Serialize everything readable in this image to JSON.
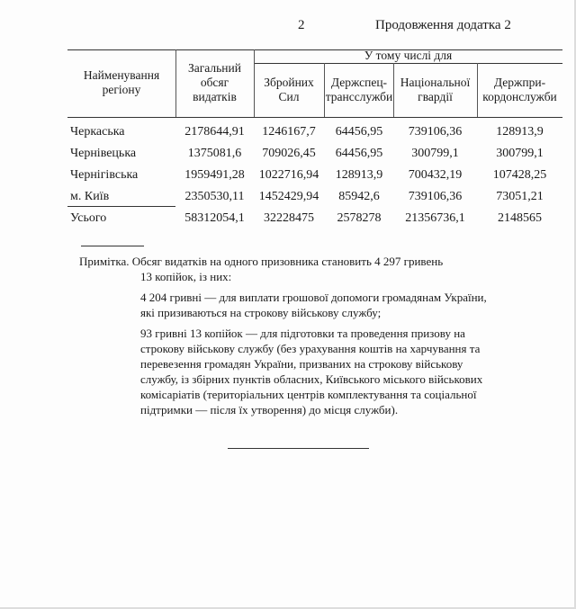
{
  "page_number": "2",
  "continuation_label": "Продовження додатка 2",
  "table": {
    "headers": {
      "region": "Найменування регіону",
      "total": "Загальний обсяг видатків",
      "group": "У тому числі для",
      "sub": [
        "Збройних Сил",
        "Держспец-трансслужби",
        "Національної гвардії",
        "Держпри-кордонслужби"
      ]
    },
    "header_lines": {
      "region": [
        "Найменування",
        "регіону"
      ],
      "total": [
        "Загальний",
        "обсяг",
        "видатків"
      ],
      "sub": [
        [
          "Збройних",
          "Сил"
        ],
        [
          "Держспец-",
          "трансслужби"
        ],
        [
          "Національної",
          "гвардії"
        ],
        [
          "Держпри-",
          "кордонслужби"
        ]
      ]
    },
    "rows": [
      [
        "Черкаська",
        "2178644,91",
        "1246167,7",
        "64456,95",
        "739106,36",
        "128913,9"
      ],
      [
        "Чернівецька",
        "1375081,6",
        "709026,45",
        "64456,95",
        "300799,1",
        "300799,1"
      ],
      [
        "Чернігівська",
        "1959491,28",
        "1022716,94",
        "128913,9",
        "700432,19",
        "107428,25"
      ],
      [
        "м. Київ",
        "2350530,11",
        "1452429,94",
        "85942,6",
        "739106,36",
        "73051,21"
      ],
      [
        "Усього",
        "58312054,1",
        "32228475",
        "2578278",
        "21356736,1",
        "2148565"
      ]
    ]
  },
  "note": {
    "lines": [
      "Примітка. Обсяг видатків на одного призовника становить 4 297 гривень",
      "13 копійок, із них:",
      "4 204 гривні — для виплати грошової допомоги громадянам України,",
      "які призиваються на строкову військову службу;",
      "93 гривні 13 копійок — для підготовки та проведення призову на",
      "строкову військову службу (без урахування коштів на харчування та",
      "перевезення громадян України, призваних на строкову військову",
      "службу, із збірних пунктів обласних, Київського міського військових",
      "комісаріатів (територіальних центрів комплектування та соціальної",
      "підтримки — після їх утворення) до місця служби)."
    ]
  }
}
